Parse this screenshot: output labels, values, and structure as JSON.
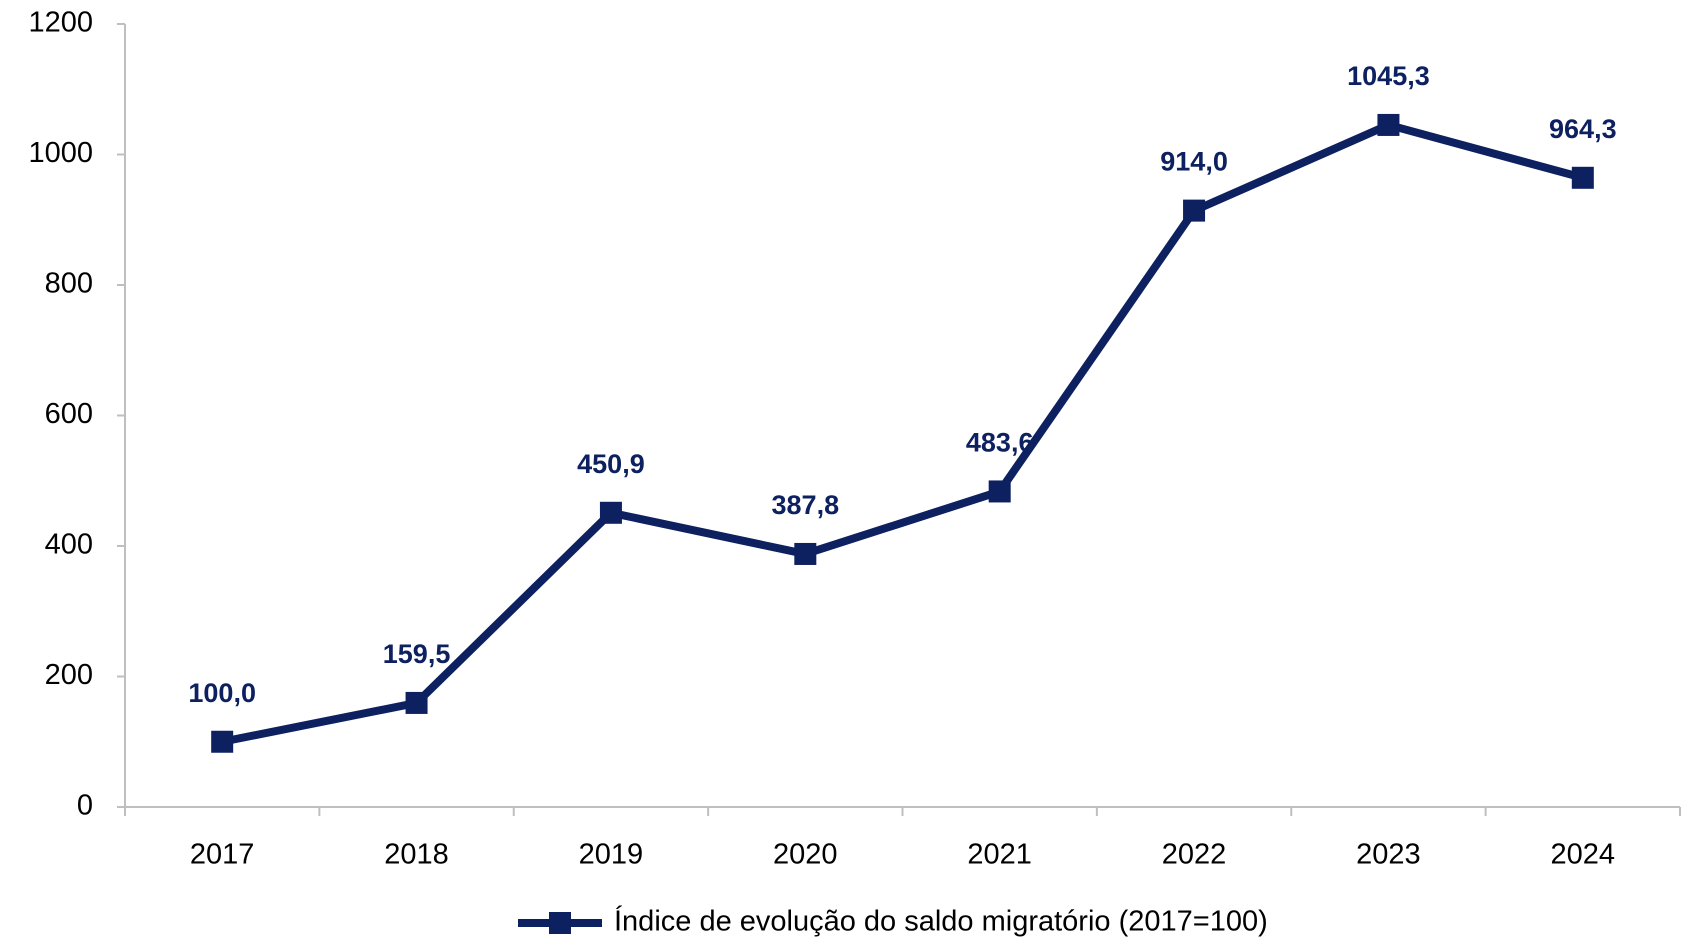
{
  "chart_data": {
    "type": "line",
    "categories": [
      "2017",
      "2018",
      "2019",
      "2020",
      "2021",
      "2022",
      "2023",
      "2024"
    ],
    "series": [
      {
        "name": "Índice de evolução do saldo migratório (2017=100)",
        "color": "#0d2060",
        "values": [
          100.0,
          159.5,
          450.9,
          387.8,
          483.6,
          914.0,
          1045.3,
          964.3
        ],
        "value_labels": [
          "100,0",
          "159,5",
          "450,9",
          "387,8",
          "483,6",
          "914,0",
          "1045,3",
          "964,3"
        ]
      }
    ],
    "ylim": [
      0,
      1200
    ],
    "yticks": [
      0,
      200,
      400,
      600,
      800,
      1000,
      1200
    ],
    "grid": false,
    "legend": "bottom"
  }
}
